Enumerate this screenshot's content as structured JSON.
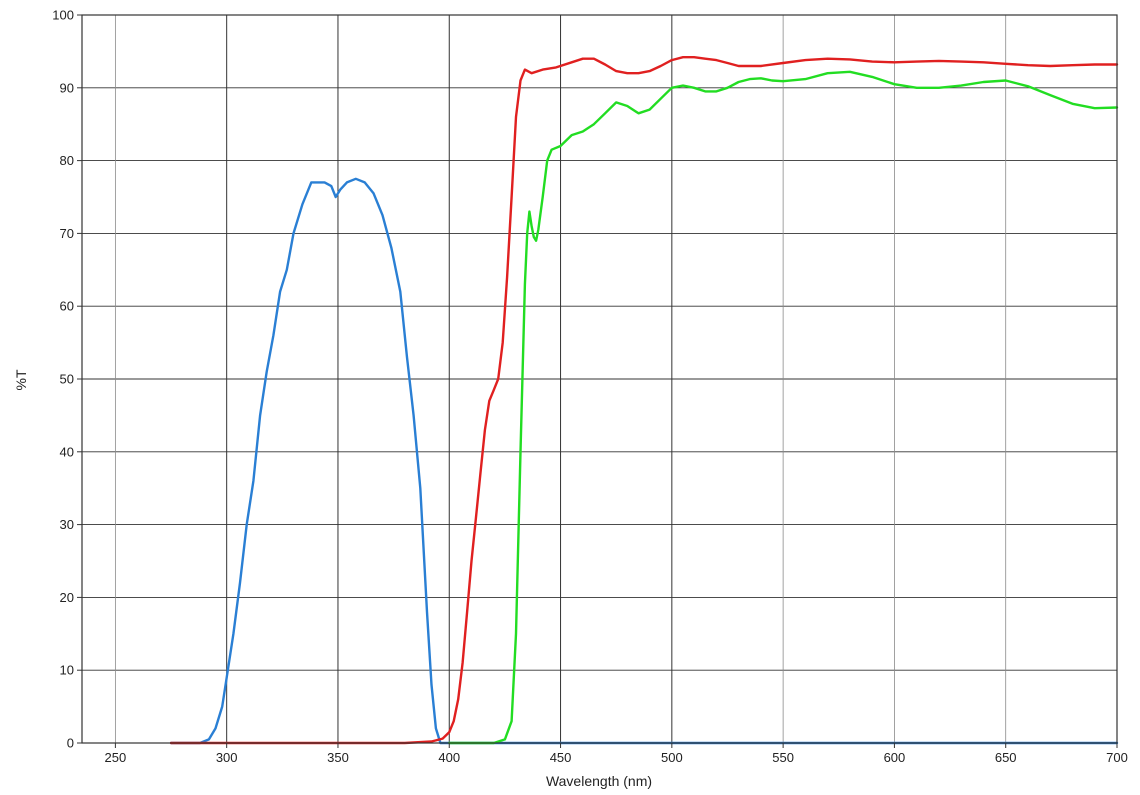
{
  "chart_data": {
    "type": "line",
    "title": "",
    "xlabel": "Wavelength (nm)",
    "ylabel": "%T",
    "xlim": [
      235,
      700
    ],
    "ylim": [
      0,
      100
    ],
    "x_ticks": [
      250,
      300,
      350,
      400,
      450,
      500,
      550,
      600,
      650,
      700
    ],
    "y_ticks": [
      0,
      10,
      20,
      30,
      40,
      50,
      60,
      70,
      80,
      90,
      100
    ],
    "x_tick_labels": [
      "250",
      "300",
      "350",
      "400",
      "450",
      "500",
      "550",
      "600",
      "650",
      "700"
    ],
    "y_tick_labels": [
      "0",
      "10",
      "20",
      "30",
      "40",
      "50",
      "60",
      "70",
      "80",
      "90",
      "100"
    ],
    "major_grid_x": [
      300,
      350,
      400,
      450,
      500
    ],
    "grid": true,
    "legend": "none",
    "series": [
      {
        "color": "#2a7fd4",
        "points": [
          [
            275,
            0
          ],
          [
            288,
            0
          ],
          [
            292,
            0.5
          ],
          [
            295,
            2
          ],
          [
            298,
            5
          ],
          [
            300,
            9
          ],
          [
            303,
            15
          ],
          [
            306,
            22
          ],
          [
            309,
            30
          ],
          [
            312,
            36
          ],
          [
            315,
            45
          ],
          [
            318,
            51
          ],
          [
            321,
            56
          ],
          [
            324,
            62
          ],
          [
            327,
            65
          ],
          [
            330,
            70
          ],
          [
            334,
            74
          ],
          [
            338,
            77
          ],
          [
            344,
            77
          ],
          [
            347,
            76.5
          ],
          [
            349,
            75
          ],
          [
            351,
            76
          ],
          [
            354,
            77
          ],
          [
            358,
            77.5
          ],
          [
            362,
            77
          ],
          [
            366,
            75.5
          ],
          [
            370,
            72.5
          ],
          [
            374,
            68
          ],
          [
            378,
            62
          ],
          [
            381,
            53
          ],
          [
            384,
            45
          ],
          [
            387,
            35
          ],
          [
            390,
            18
          ],
          [
            392,
            8
          ],
          [
            394,
            2
          ],
          [
            396,
            0
          ],
          [
            400,
            0
          ],
          [
            420,
            0
          ],
          [
            450,
            0
          ],
          [
            500,
            0
          ],
          [
            550,
            0
          ],
          [
            600,
            0
          ],
          [
            650,
            0
          ],
          [
            700,
            0
          ]
        ]
      },
      {
        "color": "#e02020",
        "points": [
          [
            275,
            0
          ],
          [
            300,
            0
          ],
          [
            350,
            0
          ],
          [
            380,
            0
          ],
          [
            392,
            0.2
          ],
          [
            397,
            0.6
          ],
          [
            400,
            1.5
          ],
          [
            402,
            3
          ],
          [
            404,
            6
          ],
          [
            406,
            11
          ],
          [
            408,
            18
          ],
          [
            410,
            25
          ],
          [
            412,
            31
          ],
          [
            414,
            37
          ],
          [
            416,
            43
          ],
          [
            418,
            47
          ],
          [
            420,
            48.5
          ],
          [
            422,
            50
          ],
          [
            424,
            55
          ],
          [
            426,
            64
          ],
          [
            428,
            75
          ],
          [
            430,
            86
          ],
          [
            432,
            91
          ],
          [
            434,
            92.5
          ],
          [
            437,
            92
          ],
          [
            442,
            92.5
          ],
          [
            448,
            92.8
          ],
          [
            455,
            93.5
          ],
          [
            460,
            94
          ],
          [
            465,
            94
          ],
          [
            470,
            93.2
          ],
          [
            475,
            92.3
          ],
          [
            480,
            92
          ],
          [
            485,
            92
          ],
          [
            490,
            92.3
          ],
          [
            495,
            93
          ],
          [
            500,
            93.8
          ],
          [
            505,
            94.2
          ],
          [
            510,
            94.2
          ],
          [
            515,
            94
          ],
          [
            520,
            93.8
          ],
          [
            525,
            93.4
          ],
          [
            530,
            93
          ],
          [
            540,
            93
          ],
          [
            550,
            93.4
          ],
          [
            560,
            93.8
          ],
          [
            570,
            94
          ],
          [
            580,
            93.9
          ],
          [
            590,
            93.6
          ],
          [
            600,
            93.5
          ],
          [
            610,
            93.6
          ],
          [
            620,
            93.7
          ],
          [
            630,
            93.6
          ],
          [
            640,
            93.5
          ],
          [
            650,
            93.3
          ],
          [
            660,
            93.1
          ],
          [
            670,
            93
          ],
          [
            680,
            93.1
          ],
          [
            690,
            93.2
          ],
          [
            700,
            93.2
          ]
        ]
      },
      {
        "color": "#22dd22",
        "points": [
          [
            400,
            0
          ],
          [
            415,
            0
          ],
          [
            420,
            0
          ],
          [
            425,
            0.5
          ],
          [
            428,
            3
          ],
          [
            430,
            15
          ],
          [
            432,
            40
          ],
          [
            434,
            63
          ],
          [
            435,
            70
          ],
          [
            436,
            73
          ],
          [
            437,
            71
          ],
          [
            438,
            69.5
          ],
          [
            439,
            69
          ],
          [
            440,
            70.5
          ],
          [
            442,
            75
          ],
          [
            444,
            80
          ],
          [
            446,
            81.5
          ],
          [
            450,
            82
          ],
          [
            455,
            83.5
          ],
          [
            460,
            84
          ],
          [
            465,
            85
          ],
          [
            470,
            86.5
          ],
          [
            475,
            88
          ],
          [
            480,
            87.5
          ],
          [
            485,
            86.5
          ],
          [
            490,
            87
          ],
          [
            495,
            88.5
          ],
          [
            500,
            90
          ],
          [
            505,
            90.3
          ],
          [
            510,
            90
          ],
          [
            515,
            89.5
          ],
          [
            520,
            89.5
          ],
          [
            525,
            90
          ],
          [
            530,
            90.8
          ],
          [
            535,
            91.2
          ],
          [
            540,
            91.3
          ],
          [
            545,
            91
          ],
          [
            550,
            90.9
          ],
          [
            560,
            91.2
          ],
          [
            570,
            92
          ],
          [
            580,
            92.2
          ],
          [
            590,
            91.5
          ],
          [
            600,
            90.5
          ],
          [
            610,
            90
          ],
          [
            620,
            90
          ],
          [
            630,
            90.3
          ],
          [
            640,
            90.8
          ],
          [
            650,
            91
          ],
          [
            660,
            90.2
          ],
          [
            670,
            89
          ],
          [
            680,
            87.8
          ],
          [
            690,
            87.2
          ],
          [
            700,
            87.3
          ]
        ]
      }
    ]
  }
}
